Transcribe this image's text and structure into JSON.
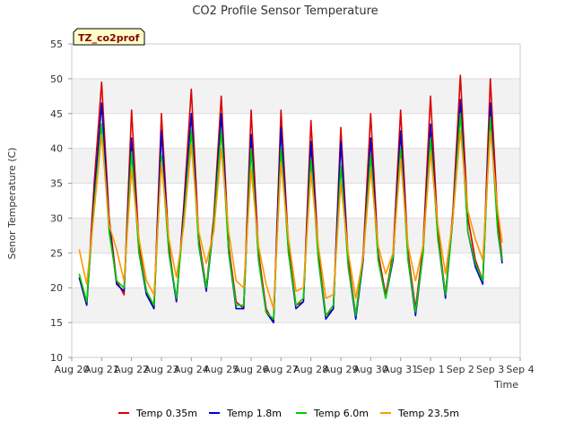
{
  "chart_data": {
    "type": "line",
    "title": "CO2 Profile Sensor Temperature",
    "xlabel": "Time",
    "ylabel": "Senor Temperature (C)",
    "annotation": "TZ_co2prof",
    "ylim": [
      10,
      55
    ],
    "yticks": [
      10,
      15,
      20,
      25,
      30,
      35,
      40,
      45,
      50,
      55
    ],
    "xlim": [
      0,
      15
    ],
    "xtick_labels": [
      "Aug 20",
      "Aug 21",
      "Aug 22",
      "Aug 23",
      "Aug 24",
      "Aug 25",
      "Aug 26",
      "Aug 27",
      "Aug 28",
      "Aug 29",
      "Aug 30",
      "Aug 31",
      "Sep 1",
      "Sep 2",
      "Sep 3",
      "Sep 4"
    ],
    "grid": true,
    "legend_position": "bottom",
    "series": [
      {
        "name": "Temp 0.35m",
        "color": "#dd0000",
        "x": [
          0.25,
          0.5,
          0.75,
          1.0,
          1.25,
          1.5,
          1.75,
          2.0,
          2.25,
          2.5,
          2.75,
          3.0,
          3.25,
          3.5,
          3.75,
          4.0,
          4.25,
          4.5,
          4.75,
          5.0,
          5.25,
          5.5,
          5.75,
          6.0,
          6.25,
          6.5,
          6.75,
          7.0,
          7.25,
          7.5,
          7.75,
          8.0,
          8.25,
          8.5,
          8.75,
          9.0,
          9.25,
          9.5,
          9.75,
          10.0,
          10.25,
          10.5,
          10.75,
          11.0,
          11.25,
          11.5,
          11.75,
          12.0,
          12.25,
          12.5,
          12.75,
          13.0,
          13.25,
          13.5,
          13.75,
          14.0,
          14.25,
          14.4
        ],
        "values": [
          21.5,
          17.5,
          35,
          49.5,
          30,
          21,
          19,
          45.5,
          26,
          19.5,
          17,
          45,
          26,
          18,
          32,
          48.5,
          27,
          20,
          30,
          47.5,
          26,
          18,
          17,
          45.5,
          25,
          17,
          15,
          45.5,
          26,
          17.5,
          18,
          44,
          25,
          16,
          17,
          43,
          24,
          16,
          25,
          45,
          25,
          19,
          25,
          45.5,
          25,
          17,
          26,
          47.5,
          28,
          19,
          31,
          50.5,
          30,
          24,
          21,
          50,
          30,
          24
        ]
      },
      {
        "name": "Temp 1.8m",
        "color": "#0000cc",
        "x": [
          0.25,
          0.5,
          0.75,
          1.0,
          1.25,
          1.5,
          1.75,
          2.0,
          2.25,
          2.5,
          2.75,
          3.0,
          3.25,
          3.5,
          3.75,
          4.0,
          4.25,
          4.5,
          4.75,
          5.0,
          5.25,
          5.5,
          5.75,
          6.0,
          6.25,
          6.5,
          6.75,
          7.0,
          7.25,
          7.5,
          7.75,
          8.0,
          8.25,
          8.5,
          8.75,
          9.0,
          9.25,
          9.5,
          9.75,
          10.0,
          10.25,
          10.5,
          10.75,
          11.0,
          11.25,
          11.5,
          11.75,
          12.0,
          12.25,
          12.5,
          12.75,
          13.0,
          13.25,
          13.5,
          13.75,
          14.0,
          14.25,
          14.4
        ],
        "values": [
          21.5,
          17.5,
          33,
          46.5,
          29,
          20.5,
          19.5,
          41.5,
          25,
          19,
          17,
          42.5,
          25,
          18,
          31,
          45,
          26,
          19.5,
          29,
          45,
          25,
          17,
          17,
          42,
          24,
          16.5,
          15,
          43,
          25,
          17,
          18,
          41,
          24,
          15.5,
          17,
          41,
          23,
          15.5,
          24,
          41.5,
          24,
          18.5,
          24,
          42.5,
          24,
          16,
          25,
          43.5,
          27,
          18.5,
          30,
          47,
          28,
          23,
          20.5,
          46.5,
          28,
          23.5
        ]
      },
      {
        "name": "Temp 6.0m",
        "color": "#00cc00",
        "x": [
          0.25,
          0.5,
          0.75,
          1.0,
          1.25,
          1.5,
          1.75,
          2.0,
          2.25,
          2.5,
          2.75,
          3.0,
          3.25,
          3.5,
          3.75,
          4.0,
          4.25,
          4.5,
          4.75,
          5.0,
          5.25,
          5.5,
          5.75,
          6.0,
          6.25,
          6.5,
          6.75,
          7.0,
          7.25,
          7.5,
          7.75,
          8.0,
          8.25,
          8.5,
          8.75,
          9.0,
          9.25,
          9.5,
          9.75,
          10.0,
          10.25,
          10.5,
          10.75,
          11.0,
          11.25,
          11.5,
          11.75,
          12.0,
          12.25,
          12.5,
          12.75,
          13.0,
          13.25,
          13.5,
          13.75,
          14.0,
          14.25,
          14.4
        ],
        "values": [
          22,
          18,
          32,
          43.5,
          28,
          21,
          20,
          39.5,
          25,
          19.5,
          17.5,
          39,
          25,
          18.5,
          30,
          42.5,
          26,
          20,
          29,
          42.5,
          25,
          17.5,
          17.5,
          40,
          24,
          16.5,
          15.5,
          40,
          25,
          17.5,
          18.5,
          38.5,
          24,
          16,
          17.5,
          37.5,
          23,
          16,
          24.5,
          39,
          24,
          18.5,
          24.5,
          40,
          24,
          16.5,
          25,
          41.5,
          27,
          19,
          30,
          45,
          28,
          23.5,
          21,
          44.5,
          28,
          24
        ]
      },
      {
        "name": "Temp 23.5m",
        "color": "#ff9900",
        "x": [
          0.25,
          0.5,
          0.75,
          1.0,
          1.25,
          1.5,
          1.75,
          2.0,
          2.25,
          2.5,
          2.75,
          3.0,
          3.25,
          3.5,
          3.75,
          4.0,
          4.25,
          4.5,
          4.75,
          5.0,
          5.25,
          5.5,
          5.75,
          6.0,
          6.25,
          6.5,
          6.75,
          7.0,
          7.25,
          7.5,
          7.75,
          8.0,
          8.25,
          8.5,
          8.75,
          9.0,
          9.25,
          9.5,
          9.75,
          10.0,
          10.25,
          10.5,
          10.75,
          11.0,
          11.25,
          11.5,
          11.75,
          12.0,
          12.25,
          12.5,
          12.75,
          13.0,
          13.25,
          13.5,
          13.75,
          14.0,
          14.25,
          14.4
        ],
        "values": [
          25.5,
          20.5,
          31,
          42,
          29,
          25.5,
          21,
          37,
          27,
          21,
          19,
          38,
          27,
          21.5,
          29,
          40.5,
          28,
          23.5,
          28,
          40,
          28,
          21,
          20,
          37,
          26,
          20.5,
          17,
          38,
          27,
          19.5,
          20,
          36.5,
          26,
          18.5,
          19,
          35,
          25,
          18.5,
          24.5,
          37,
          26,
          22,
          25,
          38.5,
          26,
          21,
          26,
          39.5,
          29,
          22,
          30,
          42.5,
          31,
          27,
          24,
          42.5,
          31,
          26.5
        ]
      }
    ]
  }
}
